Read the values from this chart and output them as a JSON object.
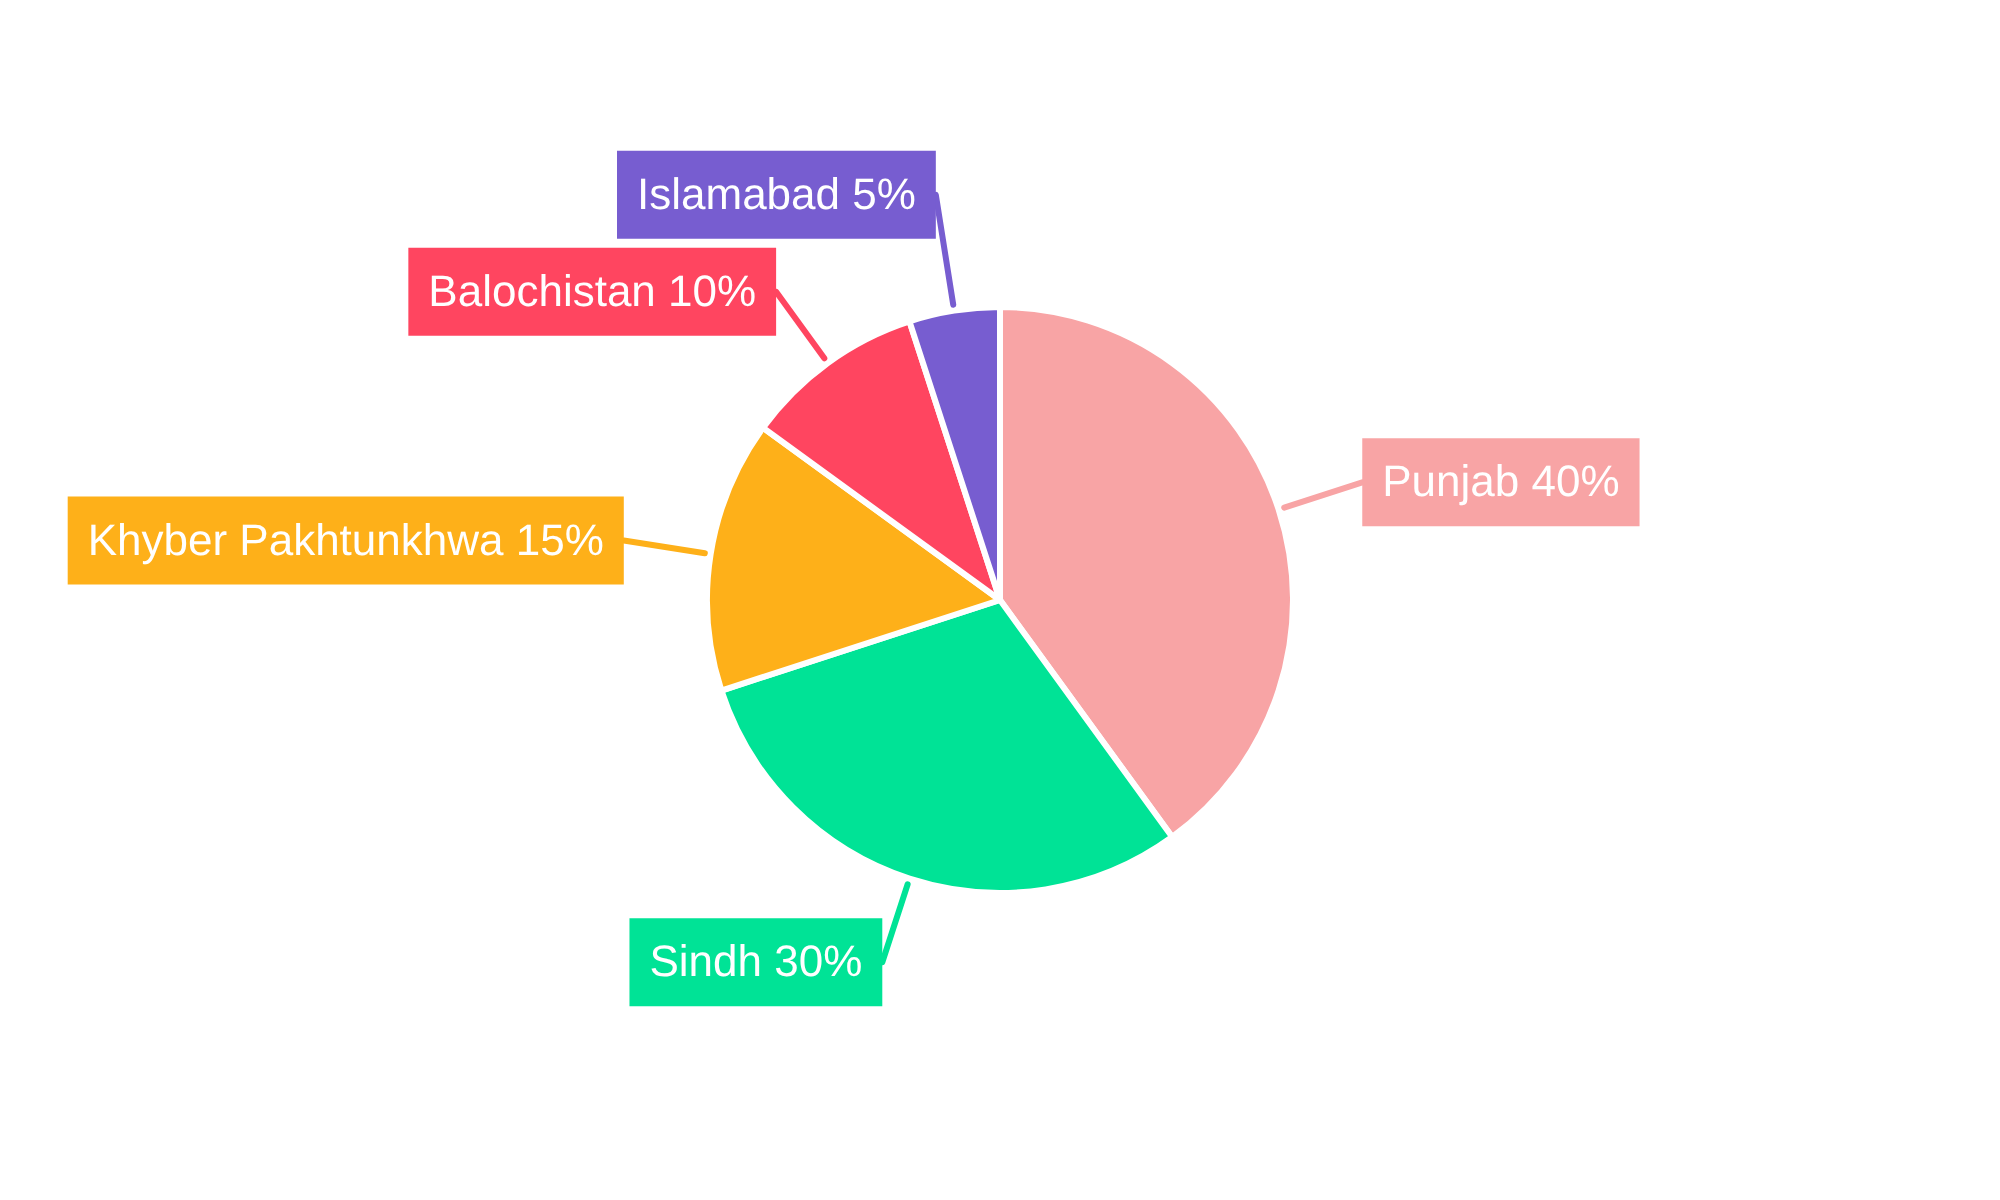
{
  "chart_data": {
    "type": "pie",
    "categories": [
      "Punjab",
      "Sindh",
      "Khyber Pakhtunkhwa",
      "Balochistan",
      "Islamabad"
    ],
    "values": [
      40,
      30,
      15,
      10,
      5
    ],
    "colors": [
      "#f8a4a5",
      "#00e396",
      "#feb019",
      "#ff4560",
      "#775dd0"
    ],
    "value_labels": [
      "40%",
      "30%",
      "15%",
      "10%",
      "5%"
    ]
  }
}
